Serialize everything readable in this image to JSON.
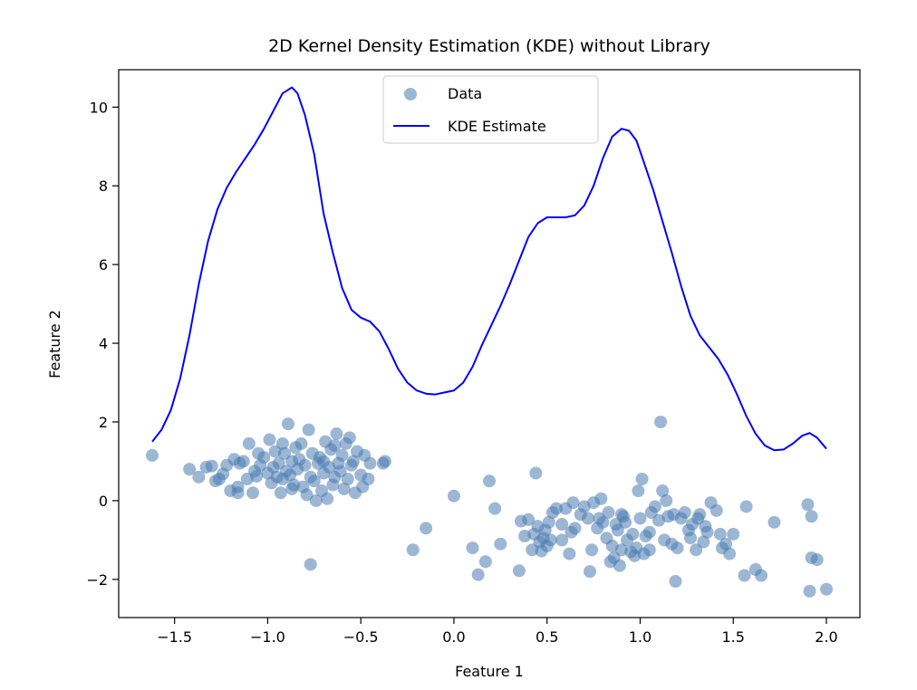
{
  "chart_data": {
    "type": "scatter",
    "title": "2D Kernel Density Estimation (KDE) without Library",
    "xlabel": "Feature 1",
    "ylabel": "Feature 2",
    "xlim": [
      -1.8,
      2.18
    ],
    "ylim": [
      -2.97,
      10.95
    ],
    "xticks": [
      -1.5,
      -1.0,
      -0.5,
      0.0,
      0.5,
      1.0,
      1.5,
      2.0
    ],
    "xtick_labels": [
      "−1.5",
      "−1.0",
      "−0.5",
      "0.0",
      "0.5",
      "1.0",
      "1.5",
      "2.0"
    ],
    "yticks": [
      -2,
      0,
      2,
      4,
      6,
      8,
      10
    ],
    "ytick_labels": [
      "−2",
      "0",
      "2",
      "4",
      "6",
      "8",
      "10"
    ],
    "grid": false,
    "legend": {
      "placement": "upper-center",
      "entries": [
        "Data",
        "KDE Estimate"
      ]
    },
    "colors": {
      "points": "#4a7cb1",
      "kde": "#0000ff"
    },
    "series": [
      {
        "name": "Data",
        "kind": "scatter",
        "points": [
          [
            -1.62,
            1.15
          ],
          [
            -1.42,
            0.8
          ],
          [
            -1.37,
            0.6
          ],
          [
            -1.33,
            0.85
          ],
          [
            -1.3,
            0.88
          ],
          [
            -1.28,
            0.5
          ],
          [
            -1.24,
            0.68
          ],
          [
            -1.22,
            0.9
          ],
          [
            -1.2,
            0.25
          ],
          [
            -1.18,
            1.05
          ],
          [
            -1.16,
            0.35
          ],
          [
            -1.15,
            0.95
          ],
          [
            -1.13,
            1.0
          ],
          [
            -1.11,
            0.55
          ],
          [
            -1.1,
            1.45
          ],
          [
            -1.08,
            0.2
          ],
          [
            -1.07,
            0.75
          ],
          [
            -1.06,
            0.62
          ],
          [
            -1.04,
            0.9
          ],
          [
            -1.02,
            1.1
          ],
          [
            -1.0,
            0.7
          ],
          [
            -0.99,
            1.55
          ],
          [
            -0.98,
            0.45
          ],
          [
            -0.97,
            0.85
          ],
          [
            -0.96,
            1.25
          ],
          [
            -0.95,
            0.6
          ],
          [
            -0.94,
            0.95
          ],
          [
            -0.93,
            0.2
          ],
          [
            -0.92,
            0.55
          ],
          [
            -0.91,
            1.2
          ],
          [
            -0.9,
            0.75
          ],
          [
            -0.89,
            1.95
          ],
          [
            -0.88,
            0.65
          ],
          [
            -0.87,
            1.0
          ],
          [
            -0.86,
            0.4
          ],
          [
            -0.85,
            1.35
          ],
          [
            -0.84,
            0.8
          ],
          [
            -0.83,
            1.05
          ],
          [
            -0.82,
            1.45
          ],
          [
            -0.81,
            0.35
          ],
          [
            -0.8,
            0.9
          ],
          [
            -0.79,
            0.15
          ],
          [
            -0.78,
            1.8
          ],
          [
            -0.77,
            0.6
          ],
          [
            -0.76,
            1.2
          ],
          [
            -0.75,
            0.5
          ],
          [
            -0.74,
            0.0
          ],
          [
            -0.73,
            0.95
          ],
          [
            -0.72,
            1.1
          ],
          [
            -0.71,
            0.25
          ],
          [
            -0.7,
            0.7
          ],
          [
            -0.69,
            1.5
          ],
          [
            -0.68,
            0.05
          ],
          [
            -0.67,
            0.85
          ],
          [
            -0.66,
            1.3
          ],
          [
            -0.65,
            0.4
          ],
          [
            -0.64,
            0.6
          ],
          [
            -0.63,
            1.7
          ],
          [
            -0.62,
            0.95
          ],
          [
            -0.61,
            0.75
          ],
          [
            -0.6,
            1.15
          ],
          [
            -0.59,
            0.3
          ],
          [
            -0.58,
            1.45
          ],
          [
            -0.57,
            0.55
          ],
          [
            -0.56,
            1.6
          ],
          [
            -0.55,
            0.9
          ],
          [
            -0.54,
            1.0
          ],
          [
            -0.53,
            0.2
          ],
          [
            -0.52,
            1.25
          ],
          [
            -0.5,
            0.65
          ],
          [
            -0.49,
            0.35
          ],
          [
            -0.48,
            1.15
          ],
          [
            -0.46,
            0.55
          ],
          [
            -0.45,
            0.95
          ],
          [
            -0.38,
            0.95
          ],
          [
            -0.37,
            1.0
          ],
          [
            -0.77,
            -1.62
          ],
          [
            -1.16,
            0.2
          ],
          [
            -1.26,
            0.55
          ],
          [
            -1.05,
            1.2
          ],
          [
            -0.87,
            0.3
          ],
          [
            -0.92,
            1.45
          ],
          [
            -0.7,
            1.0
          ],
          [
            -0.64,
            1.4
          ],
          [
            -0.22,
            -1.25
          ],
          [
            -0.15,
            -0.7
          ],
          [
            0.0,
            0.12
          ],
          [
            0.1,
            -1.2
          ],
          [
            0.13,
            -1.88
          ],
          [
            0.17,
            -1.55
          ],
          [
            0.19,
            0.5
          ],
          [
            0.22,
            -0.2
          ],
          [
            0.25,
            -1.1
          ],
          [
            0.35,
            -1.78
          ],
          [
            0.36,
            -0.52
          ],
          [
            0.38,
            -0.9
          ],
          [
            0.4,
            -0.48
          ],
          [
            0.42,
            -1.25
          ],
          [
            0.43,
            -0.85
          ],
          [
            0.44,
            0.7
          ],
          [
            0.45,
            -0.65
          ],
          [
            0.46,
            -1.05
          ],
          [
            0.47,
            -1.28
          ],
          [
            0.48,
            -0.95
          ],
          [
            0.49,
            -0.75
          ],
          [
            0.5,
            -1.15
          ],
          [
            0.51,
            -0.55
          ],
          [
            0.52,
            -1.0
          ],
          [
            0.53,
            -0.3
          ],
          [
            0.55,
            -0.2
          ],
          [
            0.58,
            -0.6
          ],
          [
            0.6,
            -0.2
          ],
          [
            0.62,
            -1.35
          ],
          [
            0.63,
            -0.8
          ],
          [
            0.64,
            -0.05
          ],
          [
            0.65,
            -0.7
          ],
          [
            0.68,
            -0.35
          ],
          [
            0.7,
            -0.15
          ],
          [
            0.72,
            -0.45
          ],
          [
            0.73,
            -1.8
          ],
          [
            0.74,
            -1.25
          ],
          [
            0.75,
            -0.05
          ],
          [
            0.77,
            -0.7
          ],
          [
            0.78,
            -0.45
          ],
          [
            0.79,
            0.05
          ],
          [
            0.8,
            -0.55
          ],
          [
            0.82,
            -0.95
          ],
          [
            0.83,
            -0.3
          ],
          [
            0.84,
            -1.55
          ],
          [
            0.85,
            -1.15
          ],
          [
            0.86,
            -1.45
          ],
          [
            0.87,
            -0.6
          ],
          [
            0.88,
            -0.75
          ],
          [
            0.89,
            -1.65
          ],
          [
            0.9,
            -1.25
          ],
          [
            0.91,
            -0.4
          ],
          [
            0.92,
            -0.55
          ],
          [
            0.93,
            -1.0
          ],
          [
            0.95,
            -1.3
          ],
          [
            0.96,
            -0.85
          ],
          [
            0.97,
            -1.4
          ],
          [
            0.98,
            -1.2
          ],
          [
            0.99,
            0.25
          ],
          [
            1.0,
            -0.45
          ],
          [
            1.01,
            0.55
          ],
          [
            1.02,
            -1.35
          ],
          [
            1.03,
            -0.9
          ],
          [
            1.05,
            -1.25
          ],
          [
            1.06,
            -0.3
          ],
          [
            1.08,
            -0.15
          ],
          [
            1.1,
            -0.5
          ],
          [
            1.11,
            2.0
          ],
          [
            1.12,
            0.25
          ],
          [
            1.13,
            -1.0
          ],
          [
            1.14,
            0.0
          ],
          [
            1.15,
            -0.4
          ],
          [
            1.17,
            -1.1
          ],
          [
            1.18,
            -0.35
          ],
          [
            1.19,
            -2.05
          ],
          [
            1.2,
            -1.2
          ],
          [
            1.22,
            -0.45
          ],
          [
            1.24,
            -0.3
          ],
          [
            1.26,
            -0.75
          ],
          [
            1.27,
            -0.95
          ],
          [
            1.28,
            -0.6
          ],
          [
            1.3,
            -1.25
          ],
          [
            1.31,
            -0.45
          ],
          [
            1.32,
            -0.35
          ],
          [
            1.34,
            -1.05
          ],
          [
            1.36,
            -0.8
          ],
          [
            1.38,
            -0.05
          ],
          [
            1.41,
            -0.25
          ],
          [
            1.43,
            -0.85
          ],
          [
            1.44,
            -1.2
          ],
          [
            1.46,
            -1.1
          ],
          [
            1.48,
            -1.35
          ],
          [
            1.5,
            -0.85
          ],
          [
            1.56,
            -1.9
          ],
          [
            1.57,
            -0.15
          ],
          [
            1.62,
            -1.75
          ],
          [
            1.65,
            -1.9
          ],
          [
            1.72,
            -0.55
          ],
          [
            1.9,
            -0.1
          ],
          [
            1.91,
            -2.3
          ],
          [
            1.92,
            -1.45
          ],
          [
            1.92,
            -0.4
          ],
          [
            1.95,
            -1.5
          ],
          [
            2.0,
            -2.25
          ],
          [
            1.35,
            -0.65
          ],
          [
            0.58,
            -1.0
          ],
          [
            0.9,
            -0.35
          ],
          [
            1.05,
            -0.8
          ]
        ]
      },
      {
        "name": "KDE Estimate",
        "kind": "line",
        "points": [
          [
            -1.62,
            1.5
          ],
          [
            -1.57,
            1.8
          ],
          [
            -1.52,
            2.3
          ],
          [
            -1.47,
            3.1
          ],
          [
            -1.42,
            4.2
          ],
          [
            -1.37,
            5.5
          ],
          [
            -1.32,
            6.6
          ],
          [
            -1.27,
            7.4
          ],
          [
            -1.22,
            7.95
          ],
          [
            -1.17,
            8.35
          ],
          [
            -1.12,
            8.7
          ],
          [
            -1.07,
            9.05
          ],
          [
            -1.02,
            9.45
          ],
          [
            -0.97,
            9.9
          ],
          [
            -0.92,
            10.35
          ],
          [
            -0.87,
            10.5
          ],
          [
            -0.84,
            10.35
          ],
          [
            -0.8,
            9.8
          ],
          [
            -0.75,
            8.8
          ],
          [
            -0.7,
            7.3
          ],
          [
            -0.65,
            6.3
          ],
          [
            -0.6,
            5.4
          ],
          [
            -0.55,
            4.85
          ],
          [
            -0.5,
            4.65
          ],
          [
            -0.45,
            4.55
          ],
          [
            -0.4,
            4.3
          ],
          [
            -0.35,
            3.85
          ],
          [
            -0.3,
            3.35
          ],
          [
            -0.25,
            3.0
          ],
          [
            -0.2,
            2.8
          ],
          [
            -0.15,
            2.72
          ],
          [
            -0.1,
            2.7
          ],
          [
            -0.05,
            2.75
          ],
          [
            0.0,
            2.8
          ],
          [
            0.05,
            3.0
          ],
          [
            0.1,
            3.4
          ],
          [
            0.15,
            3.95
          ],
          [
            0.2,
            4.45
          ],
          [
            0.25,
            4.95
          ],
          [
            0.3,
            5.5
          ],
          [
            0.35,
            6.1
          ],
          [
            0.4,
            6.7
          ],
          [
            0.45,
            7.05
          ],
          [
            0.5,
            7.2
          ],
          [
            0.55,
            7.2
          ],
          [
            0.6,
            7.2
          ],
          [
            0.65,
            7.25
          ],
          [
            0.7,
            7.5
          ],
          [
            0.75,
            8.0
          ],
          [
            0.8,
            8.7
          ],
          [
            0.85,
            9.25
          ],
          [
            0.9,
            9.45
          ],
          [
            0.94,
            9.4
          ],
          [
            0.98,
            9.15
          ],
          [
            1.02,
            8.6
          ],
          [
            1.07,
            7.9
          ],
          [
            1.12,
            7.1
          ],
          [
            1.17,
            6.3
          ],
          [
            1.22,
            5.45
          ],
          [
            1.27,
            4.7
          ],
          [
            1.32,
            4.2
          ],
          [
            1.37,
            3.9
          ],
          [
            1.42,
            3.6
          ],
          [
            1.47,
            3.2
          ],
          [
            1.52,
            2.7
          ],
          [
            1.57,
            2.15
          ],
          [
            1.62,
            1.7
          ],
          [
            1.67,
            1.4
          ],
          [
            1.72,
            1.28
          ],
          [
            1.77,
            1.3
          ],
          [
            1.82,
            1.45
          ],
          [
            1.87,
            1.65
          ],
          [
            1.91,
            1.72
          ],
          [
            1.95,
            1.6
          ],
          [
            2.0,
            1.32
          ]
        ]
      }
    ]
  }
}
